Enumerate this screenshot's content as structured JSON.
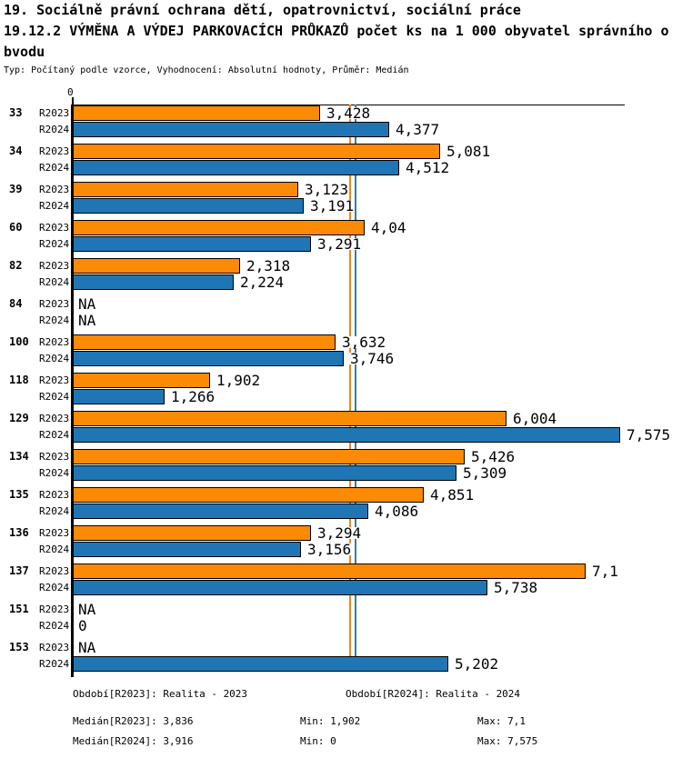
{
  "header": {
    "title": "19. Sociálně právní ochrana dětí, opatrovnictví, sociální práce",
    "subtitle_lines": [
      "19.12.2 VÝMĚNA A VÝDEJ PARKOVACÍCH PRŮKAZŮ počet ks na 1 000 obyvatel správního o",
      "bvodu"
    ],
    "meta": "Typ: Počítaný podle vzorce, Vyhodnocení: Absolutní hodnoty, Průměr: Medián"
  },
  "chart_data": {
    "type": "bar",
    "orientation": "horizontal",
    "title": "19.12.2 VÝMĚNA A VÝDEJ PARKOVACÍCH PRŮKAZŮ počet ks na 1 000 obyvatel správního obvodu",
    "axis": {
      "origin_label": "0",
      "xmin": 0,
      "xmax": 7.575,
      "grid": false
    },
    "categories": [
      "33",
      "34",
      "39",
      "60",
      "82",
      "84",
      "100",
      "118",
      "129",
      "134",
      "135",
      "136",
      "137",
      "151",
      "153"
    ],
    "series": [
      {
        "name": "R2023",
        "color": "#fb8a05",
        "values": [
          3.428,
          5.081,
          3.123,
          4.04,
          2.318,
          null,
          3.632,
          1.902,
          6.004,
          5.426,
          4.851,
          3.294,
          7.1,
          null,
          null
        ],
        "labels": [
          "3,428",
          "5,081",
          "3,123",
          "4,04",
          "2,318",
          "NA",
          "3,632",
          "1,902",
          "6,004",
          "5,426",
          "4,851",
          "3,294",
          "7,1",
          "NA",
          "NA"
        ]
      },
      {
        "name": "R2024",
        "color": "#2076b4",
        "values": [
          4.377,
          4.512,
          3.191,
          3.291,
          2.224,
          null,
          3.746,
          1.266,
          7.575,
          5.309,
          4.086,
          3.156,
          5.738,
          0,
          5.202
        ],
        "labels": [
          "4,377",
          "4,512",
          "3,191",
          "3,291",
          "2,224",
          "NA",
          "3,746",
          "1,266",
          "7,575",
          "5,309",
          "4,086",
          "3,156",
          "5,738",
          "0",
          "5,202"
        ]
      }
    ],
    "median_lines": [
      {
        "label": "Medián[R2023]",
        "value": 3.836,
        "color": "#f28718"
      },
      {
        "label": "Medián[R2024]",
        "value": 3.916,
        "color": "#2e7fae"
      }
    ],
    "legend_position": "bottom"
  },
  "legend": {
    "items": [
      {
        "text": "Období[R2023]: Realita - 2023"
      },
      {
        "text": "Období[R2024]: Realita - 2024"
      }
    ]
  },
  "stats_panel": {
    "rows": [
      [
        "Medián[R2023]: 3,836",
        "Min: 1,902",
        "Max: 7,1"
      ],
      [
        "Medián[R2024]: 3,916",
        "Min: 0",
        "Max: 7,575"
      ]
    ]
  }
}
